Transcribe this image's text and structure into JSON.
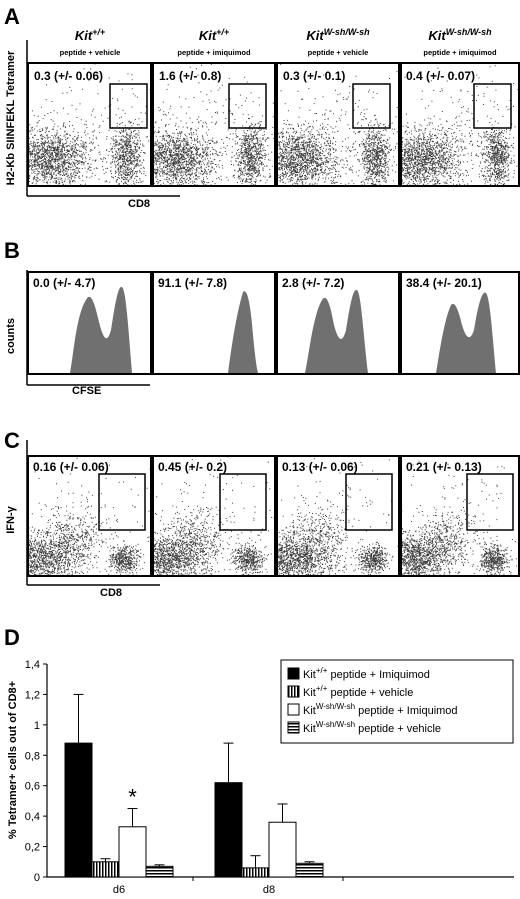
{
  "panels": {
    "A": {
      "letter": "A",
      "ylabel": "H2-Kb SIINFEKL Tetramer",
      "xlabel": "CD8",
      "columns": [
        {
          "genotype": "Kit",
          "superscript": "+/+",
          "condition": "peptide + vehicle",
          "value": "0.3 (+/- 0.06)"
        },
        {
          "genotype": "Kit",
          "superscript": "+/+",
          "condition": "peptide + imiquimod",
          "value": "1.6 (+/- 0.8)"
        },
        {
          "genotype": "Kit",
          "superscript": "W-sh/W-sh",
          "condition": "peptide + vehicle",
          "value": "0.3 (+/- 0.1)"
        },
        {
          "genotype": "Kit",
          "superscript": "W-sh/W-sh",
          "condition": "peptide + imiquimod",
          "value": "0.4 (+/- 0.07)"
        }
      ]
    },
    "B": {
      "letter": "B",
      "ylabel": "counts",
      "xlabel": "CFSE",
      "values": [
        "0.0 (+/- 4.7)",
        "91.1 (+/- 7.8)",
        "2.8 (+/- 7.2)",
        "38.4 (+/- 20.1)"
      ]
    },
    "C": {
      "letter": "C",
      "ylabel": "IFN-γ",
      "xlabel": "CD8",
      "values": [
        "0.16 (+/- 0.06)",
        "0.45 (+/- 0.2)",
        "0.13 (+/- 0.06)",
        "0.21 (+/- 0.13)"
      ]
    }
  },
  "chart_data": {
    "type": "bar",
    "letter": "D",
    "ylabel": "% Tetramer+ cells out of CD8+",
    "xlabel": "",
    "categories": [
      "d6",
      "d8"
    ],
    "ylim": [
      0,
      1.4
    ],
    "yticks": [
      "0",
      "0,2",
      "0,4",
      "0,6",
      "0,8",
      "1",
      "1,2",
      "1,4"
    ],
    "grid": false,
    "legend_position": "top-right",
    "series": [
      {
        "name": "Kit+/+ peptide + Imiquimod",
        "genotype": "Kit",
        "superscript": "+/+",
        "condition": "peptide + Imiquimod",
        "fill": "solid-black",
        "values": [
          0.88,
          0.62
        ],
        "errors": [
          0.32,
          0.26
        ]
      },
      {
        "name": "Kit+/+ peptide + vehicle",
        "genotype": "Kit",
        "superscript": "+/+",
        "condition": "peptide + vehicle",
        "fill": "vertical-stripes",
        "values": [
          0.1,
          0.06
        ],
        "errors": [
          0.02,
          0.08
        ]
      },
      {
        "name": "KitW-sh/W-sh peptide + Imiquimod",
        "genotype": "Kit",
        "superscript": "W-sh/W-sh",
        "condition": "peptide + Imiquimod",
        "fill": "white",
        "values": [
          0.33,
          0.36
        ],
        "errors": [
          0.12,
          0.12
        ]
      },
      {
        "name": "KitW-sh/W-sh peptide + vehicle",
        "genotype": "Kit",
        "superscript": "W-sh/W-sh",
        "condition": "peptide + vehicle",
        "fill": "horizontal-stripes",
        "values": [
          0.07,
          0.09
        ],
        "errors": [
          0.01,
          0.01
        ]
      }
    ],
    "annotations": [
      {
        "text": "*",
        "category": "d6",
        "series": 2
      }
    ]
  },
  "colors": {
    "ink": "#000000",
    "dots": "#1a1a1a",
    "histogram": "#707070",
    "background": "#ffffff"
  }
}
